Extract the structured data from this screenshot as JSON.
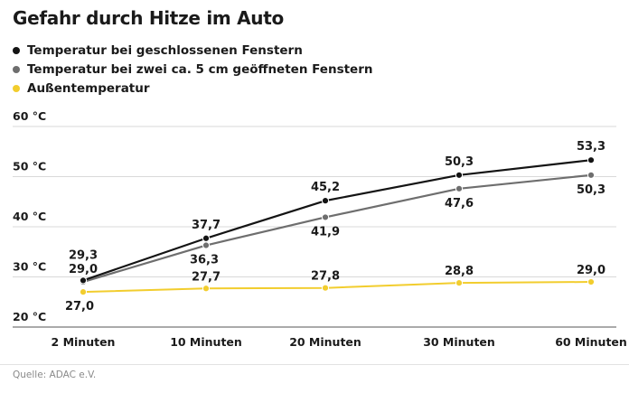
{
  "title": "Gefahr durch Hitze im Auto",
  "source": "Quelle: ADAC e.V.",
  "colors": {
    "closed": "#141414",
    "open": "#6e6e6e",
    "outside": "#f2cd2e",
    "grid": "#d9d9d9",
    "baseline": "#777777"
  },
  "chart_data": {
    "type": "line",
    "title": "Gefahr durch Hitze im Auto",
    "categories": [
      "2 Minuten",
      "10 Minuten",
      "20 Minuten",
      "30 Minuten",
      "60 Minuten"
    ],
    "y_ticks": [
      20,
      30,
      40,
      50,
      60
    ],
    "y_tick_labels": [
      "20 °C",
      "30 °C",
      "40 °C",
      "50 °C",
      "60 °C"
    ],
    "ylim": [
      20,
      60
    ],
    "grid": true,
    "legend_position": "top-left",
    "series": [
      {
        "name": "Temperatur bei geschlossenen Fenstern",
        "color": "#141414",
        "values": [
          29.3,
          37.7,
          45.2,
          50.3,
          53.3
        ],
        "labels": [
          "29,3",
          "37,7",
          "45,2",
          "50,3",
          "53,3"
        ]
      },
      {
        "name": "Temperatur bei zwei ca. 5 cm geöffneten Fenstern",
        "color": "#6e6e6e",
        "values": [
          29.0,
          36.3,
          41.9,
          47.6,
          50.3
        ],
        "labels": [
          "29,0",
          "36,3",
          "41,9",
          "47,6",
          "50,3"
        ]
      },
      {
        "name": "Außentemperatur",
        "color": "#f2cd2e",
        "values": [
          27.0,
          27.7,
          27.8,
          28.8,
          29.0
        ],
        "labels": [
          "27,0",
          "27,7",
          "27,8",
          "28,8",
          "29,0"
        ]
      }
    ]
  }
}
